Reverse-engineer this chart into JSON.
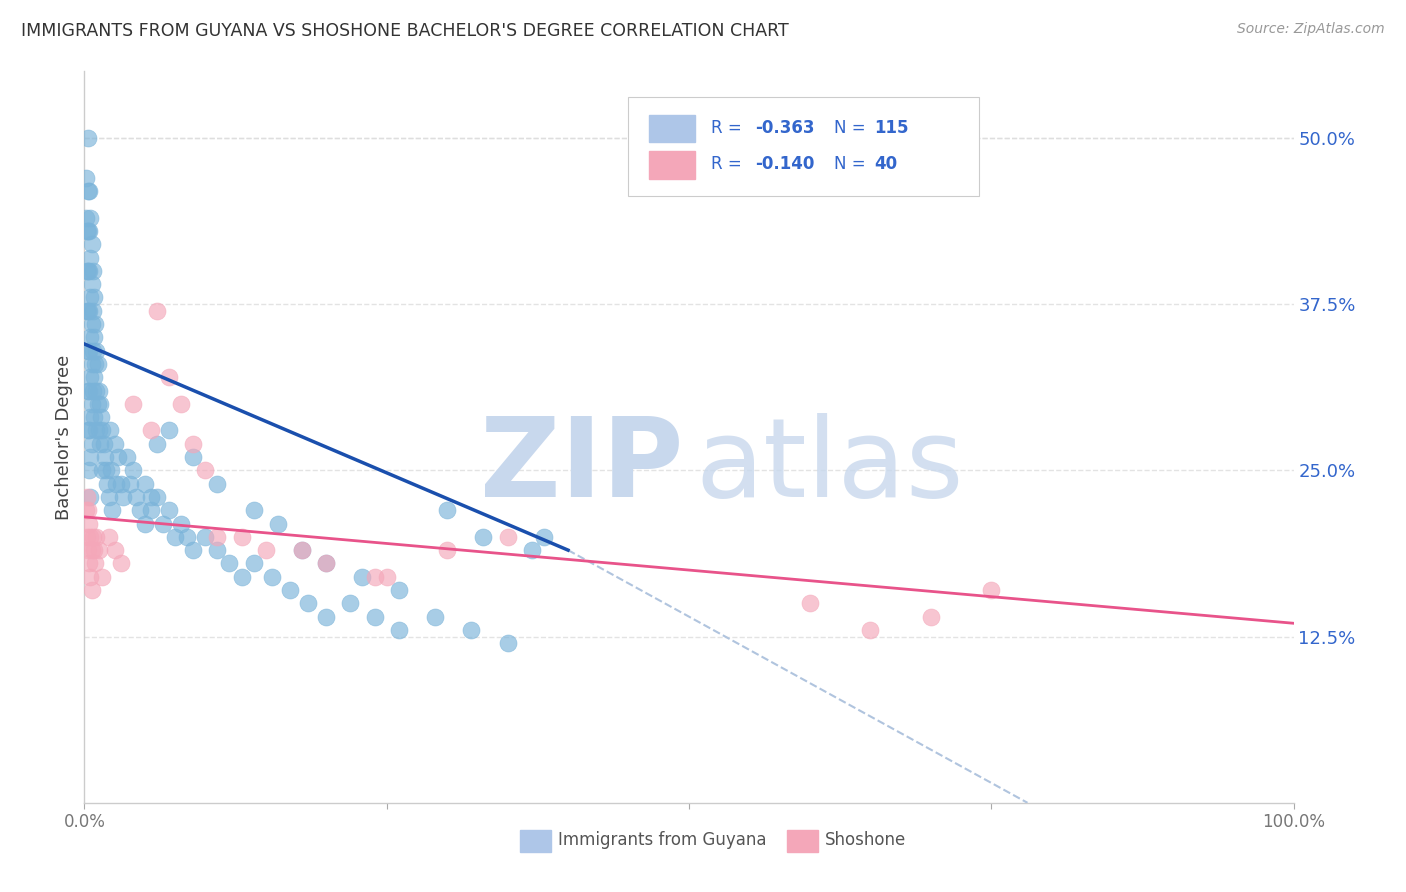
{
  "title": "IMMIGRANTS FROM GUYANA VS SHOSHONE BACHELOR'S DEGREE CORRELATION CHART",
  "source": "Source: ZipAtlas.com",
  "ylabel": "Bachelor's Degree",
  "xlim": [
    0.0,
    1.0
  ],
  "ylim": [
    0.0,
    0.55
  ],
  "right_y_ticks": [
    0.125,
    0.25,
    0.375,
    0.5
  ],
  "right_y_labels": [
    "12.5%",
    "25.0%",
    "37.5%",
    "50.0%"
  ],
  "legend_color": "#3366cc",
  "blue_line": [
    [
      0.0,
      0.345
    ],
    [
      0.4,
      0.19
    ]
  ],
  "pink_line": [
    [
      0.0,
      0.215
    ],
    [
      1.0,
      0.135
    ]
  ],
  "dashed_line": [
    [
      0.4,
      0.19
    ],
    [
      0.78,
      0.0
    ]
  ],
  "blue_color": "#7ab3d9",
  "pink_color": "#f4a7b9",
  "blue_line_color": "#1a4fad",
  "pink_line_color": "#e8538a",
  "dashed_color": "#b0c4de",
  "watermark_zip_color": "#c8d8ed",
  "watermark_atlas_color": "#c8d8ed",
  "background_color": "#ffffff",
  "grid_color": "#dddddd",
  "title_color": "#333333",
  "right_axis_color": "#3366cc",
  "blue_scatter_x": [
    0.001,
    0.001,
    0.002,
    0.002,
    0.002,
    0.003,
    0.003,
    0.003,
    0.003,
    0.003,
    0.003,
    0.003,
    0.003,
    0.004,
    0.004,
    0.004,
    0.004,
    0.004,
    0.004,
    0.004,
    0.004,
    0.005,
    0.005,
    0.005,
    0.005,
    0.005,
    0.005,
    0.005,
    0.005,
    0.006,
    0.006,
    0.006,
    0.006,
    0.006,
    0.006,
    0.007,
    0.007,
    0.007,
    0.007,
    0.008,
    0.008,
    0.008,
    0.008,
    0.009,
    0.009,
    0.01,
    0.01,
    0.01,
    0.011,
    0.011,
    0.012,
    0.012,
    0.013,
    0.013,
    0.014,
    0.015,
    0.015,
    0.016,
    0.017,
    0.018,
    0.019,
    0.02,
    0.021,
    0.022,
    0.023,
    0.025,
    0.026,
    0.028,
    0.03,
    0.032,
    0.035,
    0.038,
    0.04,
    0.043,
    0.046,
    0.05,
    0.055,
    0.06,
    0.065,
    0.07,
    0.075,
    0.08,
    0.085,
    0.09,
    0.1,
    0.11,
    0.12,
    0.13,
    0.14,
    0.155,
    0.17,
    0.185,
    0.2,
    0.22,
    0.24,
    0.26,
    0.29,
    0.32,
    0.35,
    0.38,
    0.14,
    0.16,
    0.07,
    0.09,
    0.11,
    0.18,
    0.2,
    0.23,
    0.26,
    0.3,
    0.33,
    0.37,
    0.05,
    0.055,
    0.06
  ],
  "blue_scatter_y": [
    0.47,
    0.44,
    0.43,
    0.4,
    0.37,
    0.5,
    0.46,
    0.43,
    0.4,
    0.37,
    0.34,
    0.31,
    0.28,
    0.46,
    0.43,
    0.4,
    0.37,
    0.34,
    0.31,
    0.28,
    0.25,
    0.44,
    0.41,
    0.38,
    0.35,
    0.32,
    0.29,
    0.26,
    0.23,
    0.42,
    0.39,
    0.36,
    0.33,
    0.3,
    0.27,
    0.4,
    0.37,
    0.34,
    0.31,
    0.38,
    0.35,
    0.32,
    0.29,
    0.36,
    0.33,
    0.34,
    0.31,
    0.28,
    0.33,
    0.3,
    0.31,
    0.28,
    0.3,
    0.27,
    0.29,
    0.28,
    0.25,
    0.27,
    0.26,
    0.25,
    0.24,
    0.23,
    0.28,
    0.25,
    0.22,
    0.27,
    0.24,
    0.26,
    0.24,
    0.23,
    0.26,
    0.24,
    0.25,
    0.23,
    0.22,
    0.24,
    0.22,
    0.23,
    0.21,
    0.22,
    0.2,
    0.21,
    0.2,
    0.19,
    0.2,
    0.19,
    0.18,
    0.17,
    0.18,
    0.17,
    0.16,
    0.15,
    0.14,
    0.15,
    0.14,
    0.13,
    0.14,
    0.13,
    0.12,
    0.2,
    0.22,
    0.21,
    0.28,
    0.26,
    0.24,
    0.19,
    0.18,
    0.17,
    0.16,
    0.22,
    0.2,
    0.19,
    0.21,
    0.23,
    0.27
  ],
  "pink_scatter_x": [
    0.001,
    0.002,
    0.002,
    0.003,
    0.003,
    0.004,
    0.004,
    0.005,
    0.005,
    0.006,
    0.006,
    0.007,
    0.008,
    0.009,
    0.01,
    0.012,
    0.015,
    0.02,
    0.025,
    0.03,
    0.04,
    0.055,
    0.07,
    0.09,
    0.11,
    0.15,
    0.2,
    0.25,
    0.06,
    0.08,
    0.1,
    0.13,
    0.18,
    0.24,
    0.6,
    0.65,
    0.7,
    0.75,
    0.3,
    0.35
  ],
  "pink_scatter_y": [
    0.22,
    0.23,
    0.2,
    0.22,
    0.19,
    0.21,
    0.18,
    0.2,
    0.17,
    0.19,
    0.16,
    0.2,
    0.19,
    0.18,
    0.2,
    0.19,
    0.17,
    0.2,
    0.19,
    0.18,
    0.3,
    0.28,
    0.32,
    0.27,
    0.2,
    0.19,
    0.18,
    0.17,
    0.37,
    0.3,
    0.25,
    0.2,
    0.19,
    0.17,
    0.15,
    0.13,
    0.14,
    0.16,
    0.19,
    0.2
  ]
}
